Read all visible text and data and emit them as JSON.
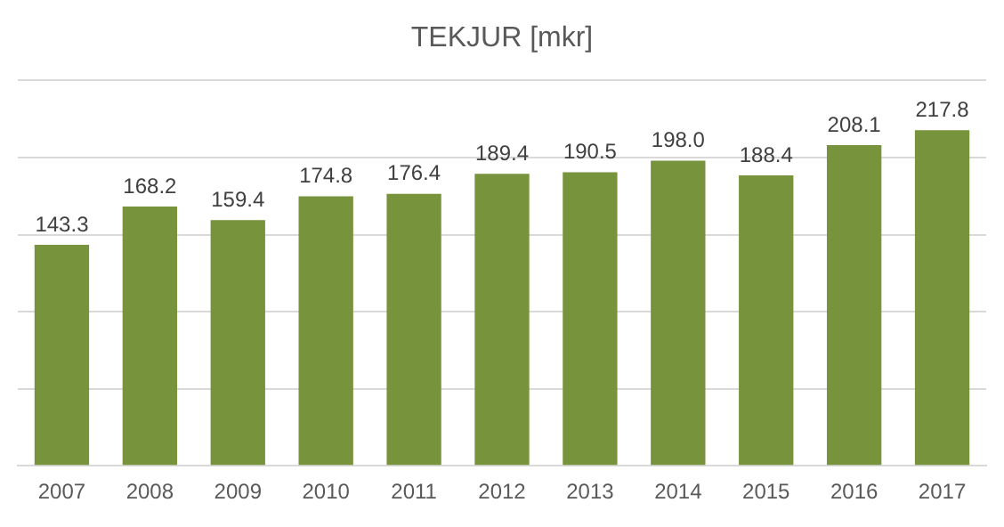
{
  "chart_data": {
    "type": "bar",
    "title": "TEKJUR [mkr]",
    "categories": [
      "2007",
      "2008",
      "2009",
      "2010",
      "2011",
      "2012",
      "2013",
      "2014",
      "2015",
      "2016",
      "2017"
    ],
    "values": [
      143.3,
      168.2,
      159.4,
      174.8,
      176.4,
      189.4,
      190.5,
      198.0,
      188.4,
      208.1,
      217.8
    ],
    "value_labels": [
      "143.3",
      "168.2",
      "159.4",
      "174.8",
      "176.4",
      "189.4",
      "190.5",
      "198.0",
      "188.4",
      "208.1",
      "217.8"
    ],
    "color": "#77933c",
    "ylim": [
      0,
      250
    ],
    "yticks": [
      {
        "value": 0,
        "label": null
      },
      {
        "value": 50,
        "label": null
      },
      {
        "value": 100,
        "label": null
      },
      {
        "value": 150,
        "label": null
      },
      {
        "value": 200,
        "label": null
      },
      {
        "value": 250,
        "label": null
      }
    ],
    "grid": "y",
    "tick_labels": "x",
    "legend": false
  }
}
